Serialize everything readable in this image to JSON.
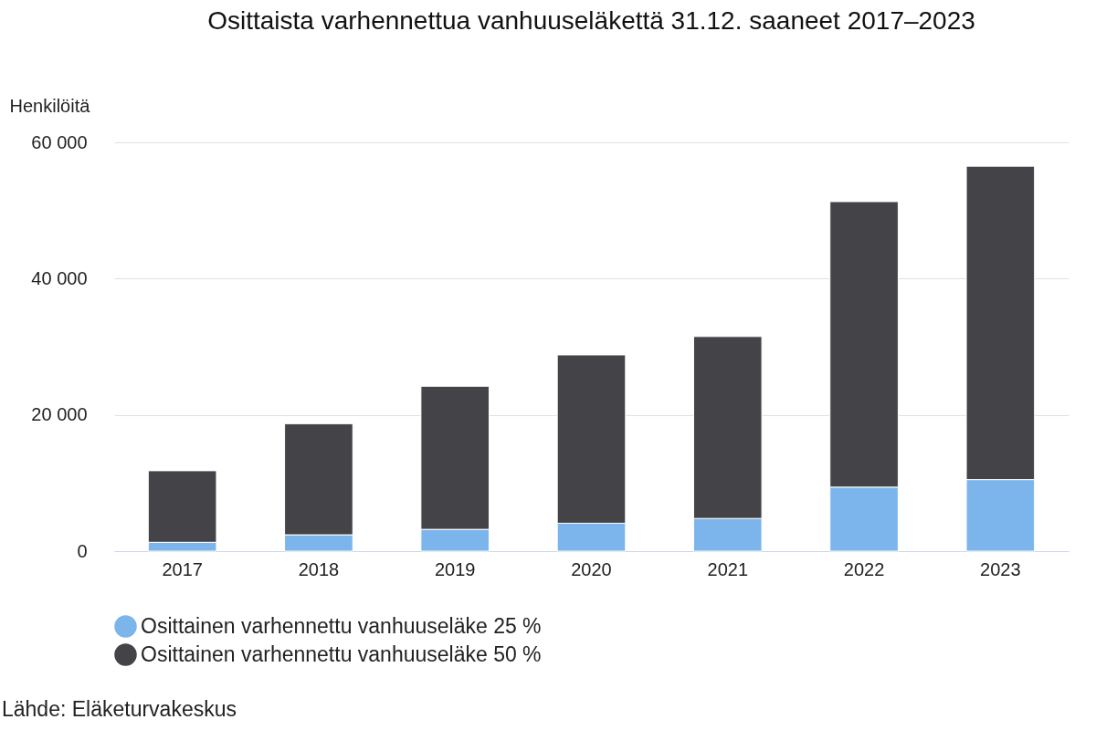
{
  "chart_data": {
    "type": "bar",
    "title": "Osittaista varhennettua vanhuuseläkettä 31.12. saaneet 2017–2023",
    "ylabel": "Henkilöitä",
    "categories": [
      "2017",
      "2018",
      "2019",
      "2020",
      "2021",
      "2022",
      "2023"
    ],
    "stacked": true,
    "series": [
      {
        "name": "Osittainen varhennettu vanhuuseläke 25 %",
        "color": "#7cb5ec",
        "values": [
          1300,
          2400,
          3200,
          4100,
          4800,
          9400,
          10500
        ]
      },
      {
        "name": "Osittainen varhennettu vanhuuseläke 50 %",
        "color": "#434348",
        "values": [
          10500,
          16300,
          21000,
          24700,
          26700,
          41900,
          46000
        ]
      }
    ],
    "ylim": [
      0,
      60000
    ],
    "yticks": [
      0,
      {
        "value": 20000,
        "label": "20 000"
      },
      {
        "value": 40000,
        "label": "40 000"
      },
      {
        "value": 60000,
        "label": "60 000"
      }
    ],
    "grid": "y",
    "legend": "bottom",
    "annotations": [
      "Lähde: Eläketurvakeskus"
    ]
  }
}
